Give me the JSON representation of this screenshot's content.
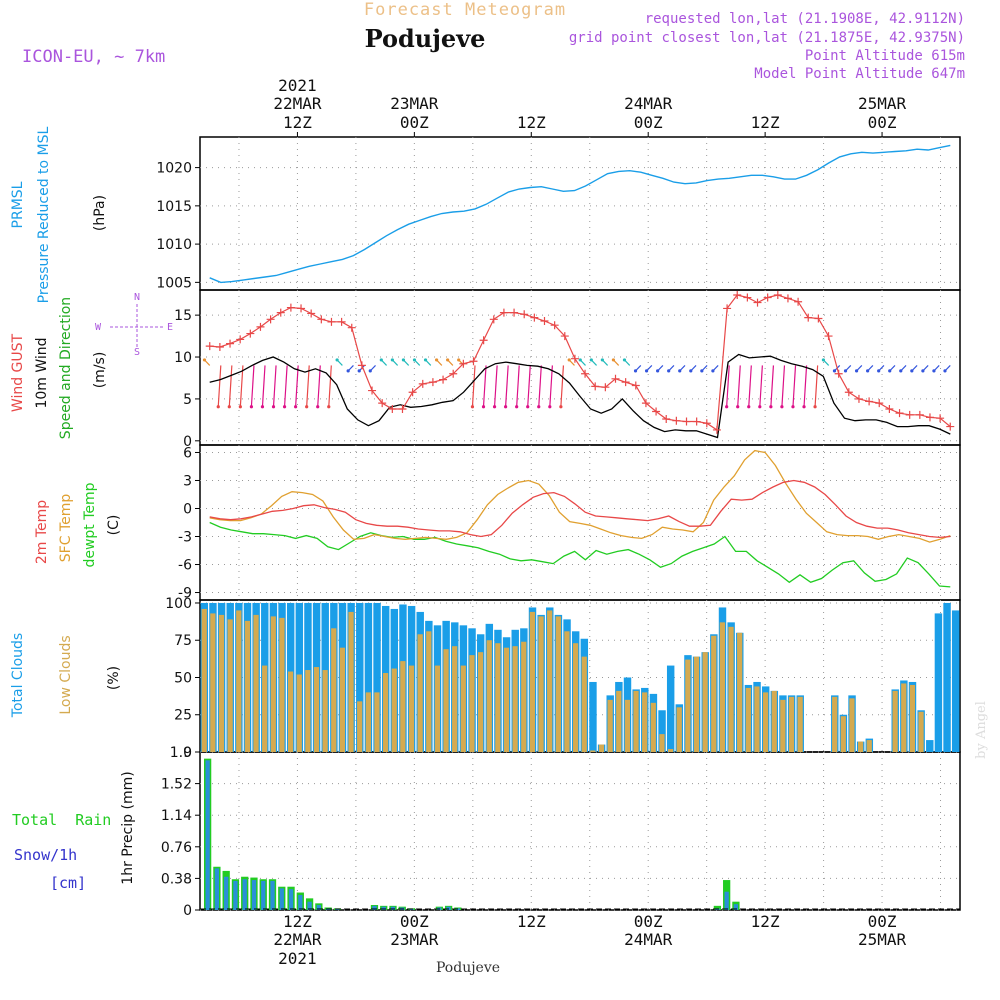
{
  "header": {
    "title": "Forecast Meteogram",
    "station": "Podujeve",
    "model": "ICON-EU, ~ 7km",
    "requested": "requested lon,lat (21.1908E, 42.9112N)",
    "gridpoint": "grid point closest lon,lat (21.1875E, 42.9375N)",
    "point_alt": "Point Altitude 615m",
    "model_alt": "Model Point Altitude 647m",
    "footer": "Podujeve",
    "credit": "by Angel"
  },
  "colors": {
    "pressure": "#1a9ee8",
    "gust": "#e84848",
    "wind": "#000000",
    "temp": "#e84848",
    "sfc": "#e0a030",
    "dewpt": "#22cc22",
    "total_cloud": "#1a9ee8",
    "low_cloud": "#d4aa50",
    "rain": "#22cc22",
    "snow": "#3333cc",
    "label_purple": "#aa55dd"
  },
  "time_axis": {
    "top": [
      {
        "t": 12,
        "label": "12Z",
        "date": "22MAR",
        "year": "2021"
      },
      {
        "t": 24,
        "label": "00Z",
        "date": "23MAR"
      },
      {
        "t": 36,
        "label": "12Z"
      },
      {
        "t": 48,
        "label": "00Z",
        "date": "24MAR"
      },
      {
        "t": 60,
        "label": "12Z"
      },
      {
        "t": 72,
        "label": "00Z",
        "date": "25MAR"
      }
    ],
    "bottom": [
      {
        "t": 12,
        "label": "12Z",
        "date": "22MAR",
        "year": "2021"
      },
      {
        "t": 24,
        "label": "00Z",
        "date": "23MAR"
      },
      {
        "t": 36,
        "label": "12Z"
      },
      {
        "t": 48,
        "label": "00Z",
        "date": "24MAR"
      },
      {
        "t": 60,
        "label": "12Z"
      },
      {
        "t": 72,
        "label": "00Z",
        "date": "25MAR"
      }
    ]
  },
  "chart_data": [
    {
      "type": "line",
      "panel": "pressure",
      "ylabel_lines": [
        "PRMSL",
        "Pressure Reduced to MSL"
      ],
      "unit": "(hPa)",
      "ylim": [
        1004,
        1024
      ],
      "yticks": [
        1005,
        1010,
        1015,
        1020
      ],
      "series": [
        {
          "values": [
            1005.6,
            1005.0,
            1005.1,
            1005.3,
            1005.5,
            1005.7,
            1005.9,
            1006.3,
            1006.7,
            1007.1,
            1007.4,
            1007.7,
            1008.0,
            1008.5,
            1009.3,
            1010.2,
            1011.1,
            1011.9,
            1012.6,
            1013.1,
            1013.6,
            1014.0,
            1014.2,
            1014.3,
            1014.6,
            1015.2,
            1016.0,
            1016.8,
            1017.2,
            1017.4,
            1017.5,
            1017.2,
            1016.9,
            1017.0,
            1017.6,
            1018.4,
            1019.2,
            1019.5,
            1019.6,
            1019.4,
            1019.0,
            1018.6,
            1018.1,
            1017.9,
            1018.0,
            1018.3,
            1018.5,
            1018.6,
            1018.8,
            1019.0,
            1019.0,
            1018.8,
            1018.5,
            1018.5,
            1019.0,
            1019.7,
            1020.6,
            1021.4,
            1021.8,
            1022.0,
            1021.9,
            1022.0,
            1022.1,
            1022.2,
            1022.4,
            1022.3,
            1022.6,
            1022.9
          ]
        }
      ]
    },
    {
      "type": "line",
      "panel": "wind",
      "ylabel_lines": [
        "Wind GUST",
        "10m Wind",
        "Speed and Direction"
      ],
      "unit": "(m/s)",
      "ylim": [
        -0.5,
        18
      ],
      "yticks": [
        0,
        5,
        10,
        15
      ],
      "compass": {
        "n": "N",
        "s": "S",
        "e": "E",
        "w": "W"
      },
      "series": [
        {
          "name": "Wind GUST",
          "values": [
            11.3,
            11.2,
            11.6,
            12.1,
            12.8,
            13.6,
            14.5,
            15.3,
            15.9,
            15.8,
            15.2,
            14.5,
            14.2,
            14.2,
            13.5,
            9.0,
            6.0,
            4.5,
            3.8,
            3.8,
            5.8,
            6.8,
            7.0,
            7.3,
            8.0,
            9.2,
            9.5,
            12.0,
            14.5,
            15.3,
            15.3,
            15.1,
            14.7,
            14.3,
            13.8,
            12.5,
            9.8,
            8.0,
            6.5,
            6.4,
            7.4,
            7.0,
            6.6,
            4.5,
            3.5,
            2.6,
            2.4,
            2.3,
            2.3,
            2.1,
            1.3,
            15.8,
            17.4,
            17.1,
            16.5,
            17.1,
            17.4,
            17.0,
            16.6,
            14.7,
            14.6,
            12.5,
            8.0,
            5.8,
            5.0,
            4.7,
            4.5,
            3.8,
            3.3,
            3.1,
            3.1,
            2.8,
            2.7,
            1.7
          ]
        },
        {
          "name": "10m Wind",
          "values": [
            7.0,
            7.3,
            7.8,
            8.3,
            9.0,
            9.6,
            10.0,
            9.4,
            8.6,
            8.2,
            8.6,
            8.1,
            6.7,
            3.8,
            2.5,
            1.8,
            2.4,
            4.0,
            4.3,
            4.0,
            4.1,
            4.3,
            4.6,
            4.8,
            5.8,
            7.2,
            8.6,
            9.2,
            9.4,
            9.2,
            9.0,
            8.9,
            8.6,
            8.0,
            6.9,
            5.3,
            3.8,
            3.3,
            3.8,
            5.0,
            3.6,
            2.4,
            1.6,
            1.1,
            1.3,
            1.2,
            1.2,
            0.8,
            0.4,
            9.4,
            10.3,
            9.9,
            10.0,
            10.1,
            9.6,
            9.2,
            8.9,
            8.5,
            7.7,
            4.5,
            2.7,
            2.4,
            2.5,
            2.5,
            2.2,
            1.7,
            1.7,
            1.8,
            1.8,
            1.4,
            0.8
          ]
        }
      ]
    },
    {
      "type": "line",
      "panel": "temperature",
      "ylabel_lines": [
        "2m Temp",
        "SFC Temp",
        "dewpt Temp"
      ],
      "unit": "(C)",
      "ylim": [
        -9.8,
        6.8
      ],
      "yticks": [
        -9,
        -6,
        -3,
        0,
        3,
        6
      ],
      "series": [
        {
          "name": "2m Temp",
          "values": [
            -0.9,
            -1.1,
            -1.2,
            -1.1,
            -0.9,
            -0.6,
            -0.3,
            -0.2,
            0.0,
            0.3,
            0.4,
            0.1,
            -0.1,
            -0.4,
            -1.2,
            -1.6,
            -1.8,
            -1.9,
            -1.9,
            -2.0,
            -2.2,
            -2.3,
            -2.4,
            -2.4,
            -2.5,
            -2.8,
            -3.0,
            -2.8,
            -1.8,
            -0.5,
            0.4,
            1.2,
            1.6,
            1.7,
            1.3,
            0.5,
            -0.4,
            -0.8,
            -0.9,
            -1.0,
            -1.1,
            -1.2,
            -1.3,
            -1.1,
            -0.8,
            -1.4,
            -1.9,
            -1.9,
            -1.8,
            -0.3,
            1.0,
            0.9,
            1.0,
            1.7,
            2.3,
            2.8,
            3.0,
            2.8,
            2.3,
            1.5,
            0.4,
            -0.8,
            -1.5,
            -1.9,
            -2.1,
            -2.1,
            -2.3,
            -2.6,
            -2.8,
            -3.0,
            -3.1,
            -3.0
          ]
        },
        {
          "name": "SFC Temp",
          "values": [
            -1.0,
            -1.2,
            -1.3,
            -1.3,
            -1.0,
            -0.6,
            0.3,
            1.3,
            1.8,
            1.7,
            1.5,
            0.8,
            -0.9,
            -2.3,
            -3.3,
            -3.2,
            -2.8,
            -3.0,
            -3.2,
            -3.3,
            -3.2,
            -3.1,
            -3.2,
            -3.3,
            -3.1,
            -2.6,
            -1.2,
            0.4,
            1.5,
            2.2,
            2.8,
            3.0,
            2.6,
            1.4,
            -0.4,
            -1.4,
            -1.6,
            -1.8,
            -2.2,
            -2.6,
            -2.9,
            -3.1,
            -3.2,
            -2.8,
            -2.0,
            -2.2,
            -2.3,
            -2.5,
            -1.5,
            0.9,
            2.3,
            3.5,
            5.2,
            6.2,
            6.0,
            4.6,
            2.7,
            1.0,
            -0.5,
            -1.5,
            -2.5,
            -2.8,
            -2.9,
            -2.9,
            -3.0,
            -3.3,
            -3.0,
            -2.8,
            -3.0,
            -3.2,
            -3.6,
            -3.3,
            -2.9
          ]
        },
        {
          "name": "dewpt Temp",
          "values": [
            -1.5,
            -2.0,
            -2.3,
            -2.5,
            -2.7,
            -2.7,
            -2.8,
            -2.9,
            -3.2,
            -2.9,
            -3.2,
            -4.1,
            -4.4,
            -3.7,
            -3.0,
            -2.6,
            -2.9,
            -3.1,
            -3.0,
            -3.3,
            -3.3,
            -3.1,
            -3.5,
            -3.8,
            -4.0,
            -4.2,
            -4.6,
            -4.9,
            -5.4,
            -5.6,
            -5.5,
            -5.7,
            -5.9,
            -5.1,
            -4.6,
            -5.5,
            -4.5,
            -4.9,
            -4.6,
            -4.4,
            -4.9,
            -5.5,
            -6.3,
            -5.9,
            -5.1,
            -4.6,
            -4.2,
            -3.8,
            -3.0,
            -4.6,
            -4.6,
            -5.6,
            -6.3,
            -7.0,
            -7.9,
            -7.1,
            -7.9,
            -7.5,
            -6.6,
            -5.8,
            -5.6,
            -6.9,
            -7.8,
            -7.6,
            -7.0,
            -5.3,
            -5.8,
            -7.0,
            -8.3,
            -8.4
          ]
        }
      ]
    },
    {
      "type": "bar",
      "panel": "clouds",
      "ylabel_lines": [
        "Total Clouds",
        "Low Clouds"
      ],
      "unit": "(%)",
      "ylim": [
        0,
        102
      ],
      "yticks": [
        0,
        25,
        50,
        75,
        100
      ],
      "series": [
        {
          "name": "Total Clouds",
          "values": [
            100,
            100,
            100,
            100,
            100,
            100,
            100,
            100,
            100,
            100,
            100,
            100,
            100,
            100,
            100,
            100,
            100,
            100,
            100,
            100,
            100,
            98,
            96,
            99,
            98,
            94,
            88,
            85,
            88,
            87,
            85,
            83,
            79,
            86,
            82,
            77,
            82,
            83,
            97,
            92,
            97,
            92,
            89,
            81,
            76,
            47,
            5,
            38,
            47,
            50,
            42,
            43,
            39,
            28,
            58,
            32,
            65,
            64,
            67,
            79,
            97,
            87,
            80,
            45,
            47,
            44,
            41,
            38,
            38,
            38,
            0,
            0,
            0,
            38,
            25,
            38,
            7,
            9,
            0,
            0,
            42,
            48,
            47,
            28,
            8,
            93,
            100,
            95
          ]
        },
        {
          "name": "Low Clouds",
          "values": [
            96,
            93,
            92,
            89,
            95,
            88,
            92,
            58,
            91,
            90,
            54,
            52,
            55,
            57,
            55,
            83,
            70,
            94,
            34,
            40,
            40,
            53,
            56,
            61,
            58,
            79,
            81,
            58,
            69,
            71,
            58,
            65,
            67,
            75,
            73,
            70,
            71,
            74,
            94,
            91,
            95,
            91,
            81,
            73,
            64,
            1,
            5,
            35,
            41,
            35,
            41,
            40,
            33,
            12,
            2,
            30,
            62,
            64,
            67,
            78,
            87,
            84,
            80,
            43,
            44,
            40,
            41,
            35,
            37,
            37,
            0,
            0,
            0,
            37,
            24,
            36,
            7,
            8,
            0,
            0,
            41,
            46,
            45,
            27,
            0,
            0,
            0,
            0
          ]
        }
      ]
    },
    {
      "type": "bar",
      "panel": "precip",
      "ylabel_lines": [
        "1hr Precip (mm)"
      ],
      "side_labels": {
        "rain": "Total  Rain",
        "snow": "Snow/1h",
        "cm": "[cm]"
      },
      "ylim": [
        0,
        1.9
      ],
      "yticks": [
        0,
        0.38,
        0.76,
        1.14,
        1.52,
        1.9
      ],
      "ytick_labels": [
        "0",
        "0.38",
        "0.76",
        "1.14",
        "1.52",
        "1.9"
      ],
      "series": [
        {
          "name": "Total Rain",
          "values": [
            1.82,
            0.52,
            0.47,
            0.37,
            0.4,
            0.39,
            0.37,
            0.37,
            0.28,
            0.28,
            0.21,
            0.14,
            0.08,
            0.03,
            0.02,
            0,
            0,
            0,
            0.06,
            0.05,
            0.05,
            0.04,
            0.02,
            0,
            0,
            0.04,
            0.05,
            0.03,
            0,
            0,
            0,
            0,
            0,
            0,
            0,
            0,
            0,
            0,
            0,
            0,
            0,
            0,
            0,
            0,
            0,
            0,
            0,
            0,
            0,
            0,
            0,
            0,
            0,
            0,
            0,
            0.05,
            0.36,
            0.1,
            0,
            0,
            0,
            0,
            0,
            0,
            0,
            0,
            0,
            0,
            0,
            0,
            0,
            0,
            0,
            0,
            0,
            0,
            0,
            0,
            0,
            0,
            0,
            0
          ]
        },
        {
          "name": "Snow/1h",
          "values": [
            1.8,
            0.5,
            0.4,
            0.35,
            0.37,
            0.36,
            0.35,
            0.35,
            0.26,
            0.25,
            0.18,
            0.1,
            0.06,
            0.02,
            0.01,
            0,
            0,
            0,
            0.05,
            0.04,
            0.04,
            0.03,
            0.01,
            0,
            0,
            0.03,
            0.04,
            0.02,
            0,
            0,
            0,
            0,
            0,
            0,
            0,
            0,
            0,
            0,
            0,
            0,
            0,
            0,
            0,
            0,
            0,
            0,
            0,
            0,
            0,
            0,
            0,
            0,
            0,
            0,
            0,
            0.02,
            0.22,
            0.07,
            0,
            0,
            0,
            0,
            0,
            0,
            0,
            0,
            0,
            0,
            0,
            0,
            0,
            0,
            0,
            0,
            0,
            0,
            0,
            0,
            0,
            0,
            0,
            0
          ]
        }
      ]
    }
  ]
}
